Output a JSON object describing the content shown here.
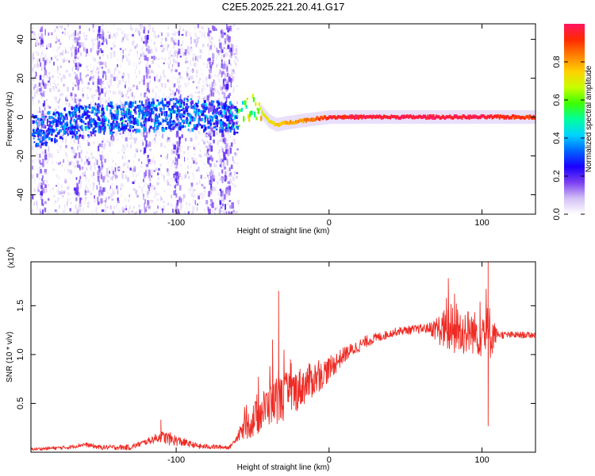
{
  "title": "C2E5.2025.221.20.41.G17",
  "chart_data": [
    {
      "type": "heatmap",
      "xlabel": "Height of straight line (km)",
      "ylabel": "Frequency (Hz)",
      "xlim": [
        -195,
        135
      ],
      "ylim": [
        -50,
        48
      ],
      "xticks": [
        -100,
        0,
        100
      ],
      "yticks": [
        -40,
        -20,
        0,
        20,
        40
      ],
      "colorbar": {
        "label": "Normalized spectral amplitude",
        "lim": [
          0,
          1
        ],
        "ticks": [
          0.0,
          0.2,
          0.4,
          0.6,
          0.8
        ],
        "colors": [
          "#ffffff",
          "#d3c0f5",
          "#7b3ff0",
          "#1a00ff",
          "#0066ff",
          "#00d5ff",
          "#00ff9a",
          "#3dff00",
          "#c8ff00",
          "#ffd000",
          "#ff8000",
          "#ff2a00",
          "#ff1560"
        ]
      },
      "ridge": [
        {
          "x": -190,
          "y": -6
        },
        {
          "x": -175,
          "y": -3
        },
        {
          "x": -160,
          "y": -1
        },
        {
          "x": -145,
          "y": 0
        },
        {
          "x": -130,
          "y": 1
        },
        {
          "x": -110,
          "y": 2
        },
        {
          "x": -90,
          "y": 2
        },
        {
          "x": -72,
          "y": 1
        },
        {
          "x": -62,
          "y": 0
        },
        {
          "x": -57,
          "y": 2
        },
        {
          "x": -52,
          "y": 5
        },
        {
          "x": -48,
          "y": 5
        },
        {
          "x": -44,
          "y": 2
        },
        {
          "x": -40,
          "y": -2
        },
        {
          "x": -35,
          "y": -4
        },
        {
          "x": -28,
          "y": -3
        },
        {
          "x": -20,
          "y": -2
        },
        {
          "x": -10,
          "y": -1
        },
        {
          "x": 0,
          "y": 0
        },
        {
          "x": 50,
          "y": 0
        },
        {
          "x": 100,
          "y": 0
        },
        {
          "x": 135,
          "y": 0
        }
      ],
      "ridge_amplitude": [
        {
          "x": -190,
          "v": 0.25
        },
        {
          "x": -140,
          "v": 0.4
        },
        {
          "x": -100,
          "v": 0.35
        },
        {
          "x": -70,
          "v": 0.3
        },
        {
          "x": -55,
          "v": 0.6
        },
        {
          "x": -35,
          "v": 0.75
        },
        {
          "x": -10,
          "v": 0.85
        },
        {
          "x": 0,
          "v": 0.95
        },
        {
          "x": 60,
          "v": 0.98
        },
        {
          "x": 100,
          "v": 0.97
        },
        {
          "x": 135,
          "v": 0.9
        }
      ],
      "noise_region_xlim": [
        -195,
        -60
      ],
      "vertical_artifacts_x": [
        -188,
        -165,
        -150,
        -120,
        -100,
        -78,
        -70,
        -66
      ]
    },
    {
      "type": "line",
      "xlabel": "Height of straight line (km)",
      "ylabel": "SNR (10 * v/v)",
      "multiplier_label": "(x10",
      "multiplier_exp": "4",
      "xlim": [
        -195,
        135
      ],
      "ylim": [
        0,
        1.95
      ],
      "xticks": [
        -100,
        0,
        100
      ],
      "yticks": [
        0.5,
        1.0,
        1.5
      ],
      "series": [
        {
          "color": "#ee2b24",
          "trend": [
            {
              "x": -195,
              "y": 0.03
            },
            {
              "x": -170,
              "y": 0.05
            },
            {
              "x": -160,
              "y": 0.08
            },
            {
              "x": -150,
              "y": 0.05
            },
            {
              "x": -130,
              "y": 0.05
            },
            {
              "x": -110,
              "y": 0.16
            },
            {
              "x": -100,
              "y": 0.12
            },
            {
              "x": -85,
              "y": 0.06
            },
            {
              "x": -65,
              "y": 0.05
            },
            {
              "x": -58,
              "y": 0.2
            },
            {
              "x": -50,
              "y": 0.32
            },
            {
              "x": -40,
              "y": 0.48
            },
            {
              "x": -25,
              "y": 0.6
            },
            {
              "x": -10,
              "y": 0.75
            },
            {
              "x": 0,
              "y": 0.85
            },
            {
              "x": 10,
              "y": 1.0
            },
            {
              "x": 25,
              "y": 1.14
            },
            {
              "x": 45,
              "y": 1.24
            },
            {
              "x": 65,
              "y": 1.27
            },
            {
              "x": 80,
              "y": 1.25
            },
            {
              "x": 100,
              "y": 1.22
            },
            {
              "x": 115,
              "y": 1.2
            },
            {
              "x": 135,
              "y": 1.2
            }
          ],
          "noise_amplitude": [
            {
              "x": -195,
              "v": 0.015
            },
            {
              "x": -120,
              "v": 0.03
            },
            {
              "x": -105,
              "v": 0.07
            },
            {
              "x": -90,
              "v": 0.03
            },
            {
              "x": -62,
              "v": 0.02
            },
            {
              "x": -50,
              "v": 0.18
            },
            {
              "x": -30,
              "v": 0.25
            },
            {
              "x": -10,
              "v": 0.18
            },
            {
              "x": 10,
              "v": 0.08
            },
            {
              "x": 40,
              "v": 0.04
            },
            {
              "x": 65,
              "v": 0.05
            },
            {
              "x": 80,
              "v": 0.28
            },
            {
              "x": 95,
              "v": 0.22
            },
            {
              "x": 105,
              "v": 0.3
            },
            {
              "x": 110,
              "v": 0.04
            },
            {
              "x": 135,
              "v": 0.03
            }
          ],
          "peaks": [
            {
              "x": -110,
              "y": 0.33
            },
            {
              "x": -33,
              "y": 1.65
            },
            {
              "x": -37,
              "y": 1.15
            },
            {
              "x": 78,
              "y": 1.78
            },
            {
              "x": 82,
              "y": 1.62
            },
            {
              "x": 104,
              "y": 1.95
            },
            {
              "x": 104,
              "y": 0.27
            }
          ]
        }
      ]
    }
  ]
}
